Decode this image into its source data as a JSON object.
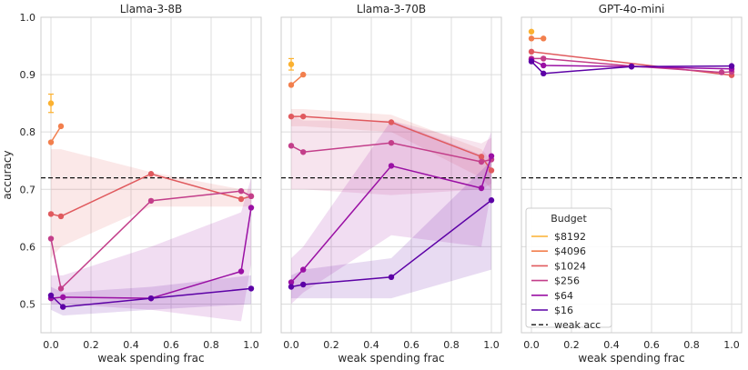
{
  "chart_data": {
    "type": "line",
    "ylabel": "accuracy",
    "xlabel": "weak spending frac",
    "ylim": [
      0.45,
      1.0
    ],
    "xlim": [
      -0.05,
      1.05
    ],
    "x_ticks": [
      "0.0",
      "0.2",
      "0.4",
      "0.6",
      "0.8",
      "1.0"
    ],
    "y_ticks": [
      "0.5",
      "0.6",
      "0.7",
      "0.8",
      "0.9",
      "1.0"
    ],
    "weak_acc": 0.72,
    "legend": {
      "title": "Budget",
      "weak_label": "weak acc",
      "entries": [
        {
          "label": "$8192",
          "color": "#fbb130"
        },
        {
          "label": "$4096",
          "color": "#f27f4d"
        },
        {
          "label": "$1024",
          "color": "#e05a5e"
        },
        {
          "label": "$256",
          "color": "#c33e8a"
        },
        {
          "label": "$64",
          "color": "#9a10a4"
        },
        {
          "label": "$16",
          "color": "#5c01a6"
        }
      ]
    },
    "panels": [
      {
        "title": "Llama-3-8B",
        "series": [
          {
            "name": "$8192",
            "color": "#fbb130",
            "points": [
              [
                0.0,
                0.85
              ]
            ],
            "errbar": 0.016
          },
          {
            "name": "$4096",
            "color": "#f27f4d",
            "points": [
              [
                0.0,
                0.782
              ],
              [
                0.05,
                0.81
              ]
            ]
          },
          {
            "name": "$1024",
            "color": "#e05a5e",
            "points": [
              [
                0.0,
                0.657
              ],
              [
                0.05,
                0.653
              ],
              [
                0.5,
                0.727
              ],
              [
                0.95,
                0.683
              ],
              [
                1.0,
                0.688
              ]
            ],
            "band_lo": [
              0.58,
              0.6,
              0.67,
              0.67,
              0.67
            ],
            "band_hi": [
              0.77,
              0.77,
              0.73,
              0.7,
              0.7
            ]
          },
          {
            "name": "$256",
            "color": "#c33e8a",
            "points": [
              [
                0.0,
                0.614
              ],
              [
                0.05,
                0.527
              ],
              [
                0.5,
                0.68
              ],
              [
                0.95,
                0.697
              ],
              [
                1.0,
                0.688
              ]
            ]
          },
          {
            "name": "$64",
            "color": "#9a10a4",
            "points": [
              [
                0.0,
                0.51
              ],
              [
                0.06,
                0.512
              ],
              [
                0.5,
                0.51
              ],
              [
                0.95,
                0.557
              ],
              [
                1.0,
                0.668
              ]
            ],
            "band_lo": [
              0.5,
              0.5,
              0.49,
              0.47,
              0.57
            ],
            "band_hi": [
              0.55,
              0.55,
              0.6,
              0.66,
              0.72
            ]
          },
          {
            "name": "$16",
            "color": "#5c01a6",
            "points": [
              [
                0.0,
                0.515
              ],
              [
                0.06,
                0.495
              ],
              [
                0.5,
                0.51
              ],
              [
                1.0,
                0.527
              ]
            ],
            "band_lo": [
              0.49,
              0.48,
              0.49,
              0.5
            ],
            "band_hi": [
              0.53,
              0.52,
              0.53,
              0.55
            ]
          }
        ]
      },
      {
        "title": "Llama-3-70B",
        "series": [
          {
            "name": "$8192",
            "color": "#fbb130",
            "points": [
              [
                0.0,
                0.918
              ]
            ],
            "errbar": 0.01
          },
          {
            "name": "$4096",
            "color": "#f27f4d",
            "points": [
              [
                0.0,
                0.882
              ],
              [
                0.06,
                0.9
              ]
            ]
          },
          {
            "name": "$1024",
            "color": "#e05a5e",
            "points": [
              [
                0.0,
                0.827
              ],
              [
                0.06,
                0.827
              ],
              [
                0.5,
                0.817
              ],
              [
                0.95,
                0.757
              ],
              [
                1.0,
                0.733
              ]
            ],
            "band_lo": [
              0.81,
              0.81,
              0.8,
              0.72,
              0.7
            ],
            "band_hi": [
              0.84,
              0.84,
              0.83,
              0.77,
              0.75
            ]
          },
          {
            "name": "$256",
            "color": "#c33e8a",
            "points": [
              [
                0.0,
                0.776
              ],
              [
                0.06,
                0.765
              ],
              [
                0.5,
                0.781
              ],
              [
                0.95,
                0.748
              ],
              [
                1.0,
                0.752
              ]
            ],
            "band_lo": [
              0.7,
              0.7,
              0.69,
              0.7,
              0.71
            ],
            "band_hi": [
              0.83,
              0.82,
              0.82,
              0.78,
              0.79
            ]
          },
          {
            "name": "$64",
            "color": "#9a10a4",
            "points": [
              [
                0.0,
                0.538
              ],
              [
                0.06,
                0.56
              ],
              [
                0.5,
                0.741
              ],
              [
                0.95,
                0.702
              ],
              [
                1.0,
                0.758
              ]
            ],
            "band_lo": [
              0.5,
              0.52,
              0.62,
              0.6,
              0.7
            ],
            "band_hi": [
              0.58,
              0.6,
              0.82,
              0.76,
              0.8
            ]
          },
          {
            "name": "$16",
            "color": "#5c01a6",
            "points": [
              [
                0.0,
                0.53
              ],
              [
                0.06,
                0.534
              ],
              [
                0.5,
                0.547
              ],
              [
                1.0,
                0.681
              ]
            ],
            "band_lo": [
              0.51,
              0.51,
              0.51,
              0.56
            ],
            "band_hi": [
              0.55,
              0.56,
              0.58,
              0.75
            ]
          }
        ]
      },
      {
        "title": "GPT-4o-mini",
        "series": [
          {
            "name": "$8192",
            "color": "#fbb130",
            "points": [
              [
                0.0,
                0.975
              ]
            ]
          },
          {
            "name": "$4096",
            "color": "#f27f4d",
            "points": [
              [
                0.0,
                0.963
              ],
              [
                0.06,
                0.963
              ]
            ]
          },
          {
            "name": "$1024",
            "color": "#e05a5e",
            "points": [
              [
                0.0,
                0.94
              ],
              [
                1.0,
                0.899
              ]
            ]
          },
          {
            "name": "$256",
            "color": "#c33e8a",
            "points": [
              [
                0.0,
                0.928
              ],
              [
                0.06,
                0.928
              ],
              [
                0.5,
                0.915
              ],
              [
                0.95,
                0.904
              ],
              [
                1.0,
                0.905
              ]
            ]
          },
          {
            "name": "$64",
            "color": "#9a10a4",
            "points": [
              [
                0.0,
                0.926
              ],
              [
                0.06,
                0.916
              ],
              [
                0.5,
                0.914
              ],
              [
                1.0,
                0.91
              ]
            ]
          },
          {
            "name": "$16",
            "color": "#5c01a6",
            "points": [
              [
                0.0,
                0.923
              ],
              [
                0.06,
                0.902
              ],
              [
                0.5,
                0.914
              ],
              [
                1.0,
                0.915
              ]
            ]
          }
        ]
      }
    ]
  }
}
